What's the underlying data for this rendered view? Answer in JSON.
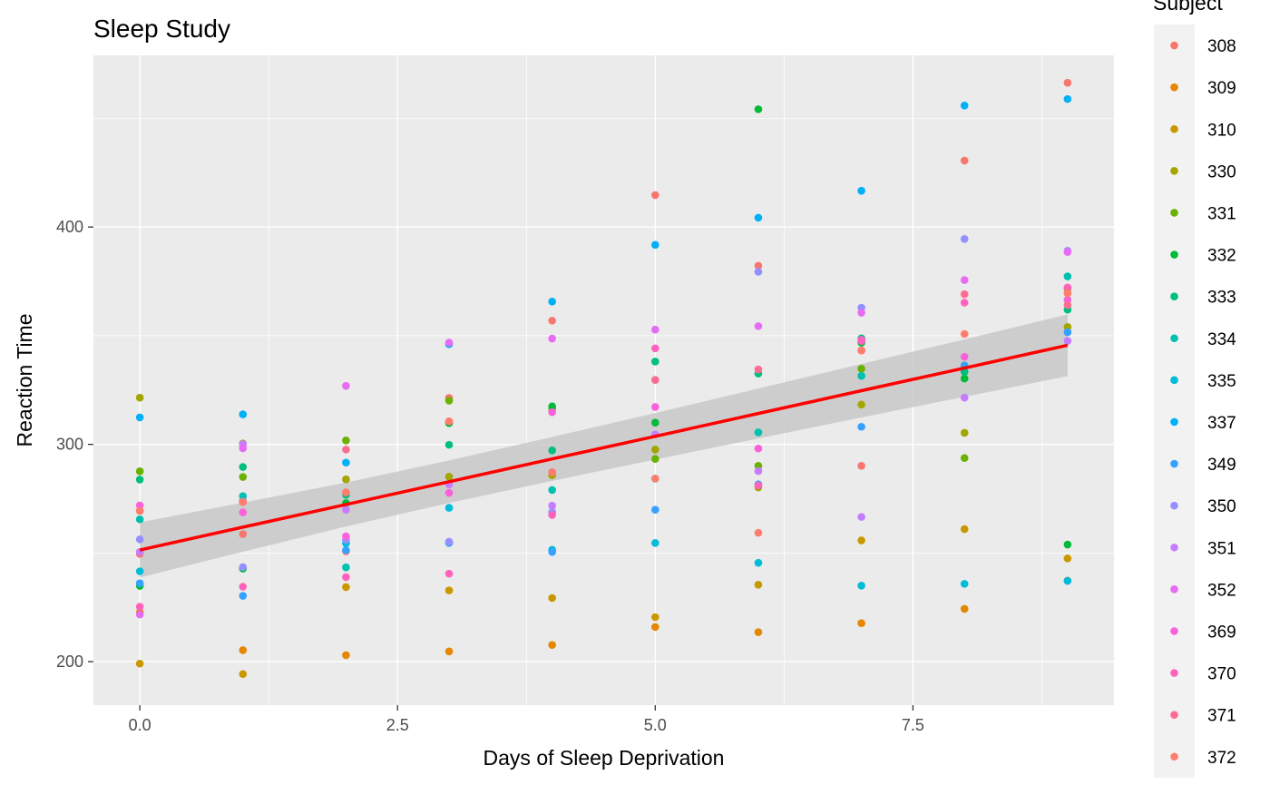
{
  "chart_data": {
    "type": "scatter",
    "title": "Sleep Study",
    "xlabel": "Days of Sleep Deprivation",
    "ylabel": "Reaction Time",
    "xlim": [
      -0.45,
      9.45
    ],
    "ylim": [
      180,
      479
    ],
    "x_ticks": [
      0,
      2.5,
      5,
      7.5
    ],
    "x_tick_labels": [
      "0.0",
      "2.5",
      "5.0",
      "7.5"
    ],
    "y_ticks": [
      200,
      300,
      400
    ],
    "y_tick_labels": [
      "200",
      "300",
      "400"
    ],
    "grid": true,
    "legend": {
      "title": "Subject",
      "position": "right"
    },
    "series": [
      {
        "name": "308",
        "color": "#F8766D",
        "x": [
          0,
          1,
          2,
          3,
          4,
          5,
          6,
          7,
          8,
          9
        ],
        "y": [
          249.6,
          258.7,
          250.8,
          321.4,
          356.9,
          414.7,
          382.2,
          290.1,
          430.6,
          466.4
        ]
      },
      {
        "name": "309",
        "color": "#E58700",
        "x": [
          0,
          1,
          2,
          3,
          4,
          5,
          6,
          7,
          8,
          9
        ],
        "y": [
          222.7,
          205.3,
          202.98,
          204.7,
          207.7,
          215.96,
          213.6,
          217.7,
          224.3,
          237.3
        ]
      },
      {
        "name": "310",
        "color": "#C99800",
        "x": [
          0,
          1,
          2,
          3,
          4,
          5,
          6,
          7,
          8,
          9
        ],
        "y": [
          199.1,
          194.3,
          234.3,
          232.8,
          229.3,
          220.5,
          235.4,
          255.8,
          261.0,
          247.5
        ]
      },
      {
        "name": "330",
        "color": "#A3A500",
        "x": [
          0,
          1,
          2,
          3,
          4,
          5,
          6,
          7,
          8,
          9
        ],
        "y": [
          321.5,
          300.4,
          283.9,
          285.1,
          285.8,
          297.6,
          280.2,
          318.3,
          305.3,
          354.0
        ]
      },
      {
        "name": "331",
        "color": "#6BB100",
        "x": [
          0,
          1,
          2,
          3,
          4,
          5,
          6,
          7,
          8,
          9
        ],
        "y": [
          287.6,
          285.0,
          301.8,
          320.1,
          316.3,
          293.3,
          290.1,
          334.8,
          293.7,
          371.6
        ]
      },
      {
        "name": "332",
        "color": "#00BA38",
        "x": [
          0,
          1,
          2,
          3,
          4,
          5,
          6,
          7,
          8,
          9
        ],
        "y": [
          234.9,
          242.8,
          272.96,
          309.8,
          317.5,
          309.99,
          454.2,
          346.8,
          330.3,
          253.9
        ]
      },
      {
        "name": "333",
        "color": "#00BF7D",
        "x": [
          0,
          1,
          2,
          3,
          4,
          5,
          6,
          7,
          8,
          9
        ],
        "y": [
          283.8,
          289.6,
          276.8,
          299.8,
          297.2,
          338.1,
          332.6,
          348.8,
          333.4,
          362.0
        ]
      },
      {
        "name": "334",
        "color": "#00C0AF",
        "x": [
          0,
          1,
          2,
          3,
          4,
          5,
          6,
          7,
          8,
          9
        ],
        "y": [
          265.5,
          276.2,
          243.4,
          254.7,
          279.0,
          284.2,
          305.5,
          331.5,
          335.7,
          377.3
        ]
      },
      {
        "name": "335",
        "color": "#00BCD8",
        "x": [
          0,
          1,
          2,
          3,
          4,
          5,
          6,
          7,
          8,
          9
        ],
        "y": [
          241.6,
          273.9,
          254.5,
          270.8,
          251.5,
          254.6,
          245.5,
          235.0,
          235.8,
          237.2
        ]
      },
      {
        "name": "337",
        "color": "#00B0F6",
        "x": [
          0,
          1,
          2,
          3,
          4,
          5,
          6,
          7,
          8,
          9
        ],
        "y": [
          312.4,
          313.8,
          291.6,
          346.1,
          365.7,
          391.8,
          404.3,
          416.7,
          455.9,
          458.9
        ]
      },
      {
        "name": "349",
        "color": "#35A2FF",
        "x": [
          0,
          1,
          2,
          3,
          4,
          5,
          6,
          7,
          8,
          9
        ],
        "y": [
          236.1,
          230.3,
          251.3,
          254.6,
          250.5,
          269.9,
          281.6,
          308.1,
          336.3,
          351.6
        ]
      },
      {
        "name": "350",
        "color": "#9590FF",
        "x": [
          0,
          1,
          2,
          3,
          4,
          5,
          6,
          7,
          8,
          9
        ],
        "y": [
          256.3,
          243.5,
          256.1,
          255.2,
          268.9,
          329.7,
          379.4,
          362.9,
          394.5,
          389.1
        ]
      },
      {
        "name": "351",
        "color": "#C77CFF",
        "x": [
          0,
          1,
          2,
          3,
          4,
          5,
          6,
          7,
          8,
          9
        ],
        "y": [
          250.5,
          300.1,
          269.9,
          281.6,
          271.8,
          304.6,
          287.7,
          266.6,
          321.5,
          347.6
        ]
      },
      {
        "name": "352",
        "color": "#E76BF3",
        "x": [
          0,
          1,
          2,
          3,
          4,
          5,
          6,
          7,
          8,
          9
        ],
        "y": [
          221.7,
          298.2,
          326.9,
          346.8,
          348.7,
          352.8,
          354.4,
          360.6,
          375.6,
          388.5
        ]
      },
      {
        "name": "369",
        "color": "#FA62DB",
        "x": [
          0,
          1,
          2,
          3,
          4,
          5,
          6,
          7,
          8,
          9
        ],
        "y": [
          271.9,
          268.7,
          257.7,
          277.7,
          314.8,
          317.2,
          298.1,
          348.1,
          340.3,
          366.5
        ]
      },
      {
        "name": "370",
        "color": "#FF62BC",
        "x": [
          0,
          1,
          2,
          3,
          4,
          5,
          6,
          7,
          8,
          9
        ],
        "y": [
          225.3,
          234.5,
          238.9,
          240.5,
          267.5,
          344.2,
          281.1,
          347.6,
          365.2,
          372.2
        ]
      },
      {
        "name": "371",
        "color": "#FF6C91",
        "x": [
          0,
          1,
          2,
          3,
          4,
          5,
          6,
          7,
          8,
          9
        ],
        "y": [
          269.4,
          273.5,
          297.6,
          310.6,
          287.2,
          329.6,
          334.5,
          343.2,
          369.1,
          364.1
        ]
      },
      {
        "name": "372",
        "color": "#FF7D6D",
        "x": [
          0,
          1,
          2,
          3,
          4,
          5,
          6,
          7,
          8,
          9
        ],
        "y": [
          269.4,
          273.5,
          277.9,
          310.6,
          287.2,
          284.3,
          259.3,
          343.2,
          350.8,
          369.5
        ]
      }
    ],
    "fit": {
      "type": "linear",
      "color": "#FF0000",
      "band_color": "#C8C8C8",
      "x": [
        0,
        1,
        2,
        3,
        4,
        5,
        6,
        7,
        8,
        9
      ],
      "y": [
        251.4,
        261.9,
        272.3,
        282.8,
        293.3,
        303.7,
        314.2,
        324.7,
        335.1,
        345.6
      ],
      "lower": [
        238.7,
        250.6,
        262.2,
        273.0,
        283.2,
        293.0,
        302.7,
        312.4,
        321.9,
        331.4
      ],
      "upper": [
        264.1,
        273.2,
        282.4,
        292.6,
        303.4,
        314.4,
        325.7,
        337.0,
        348.3,
        359.8
      ]
    }
  }
}
